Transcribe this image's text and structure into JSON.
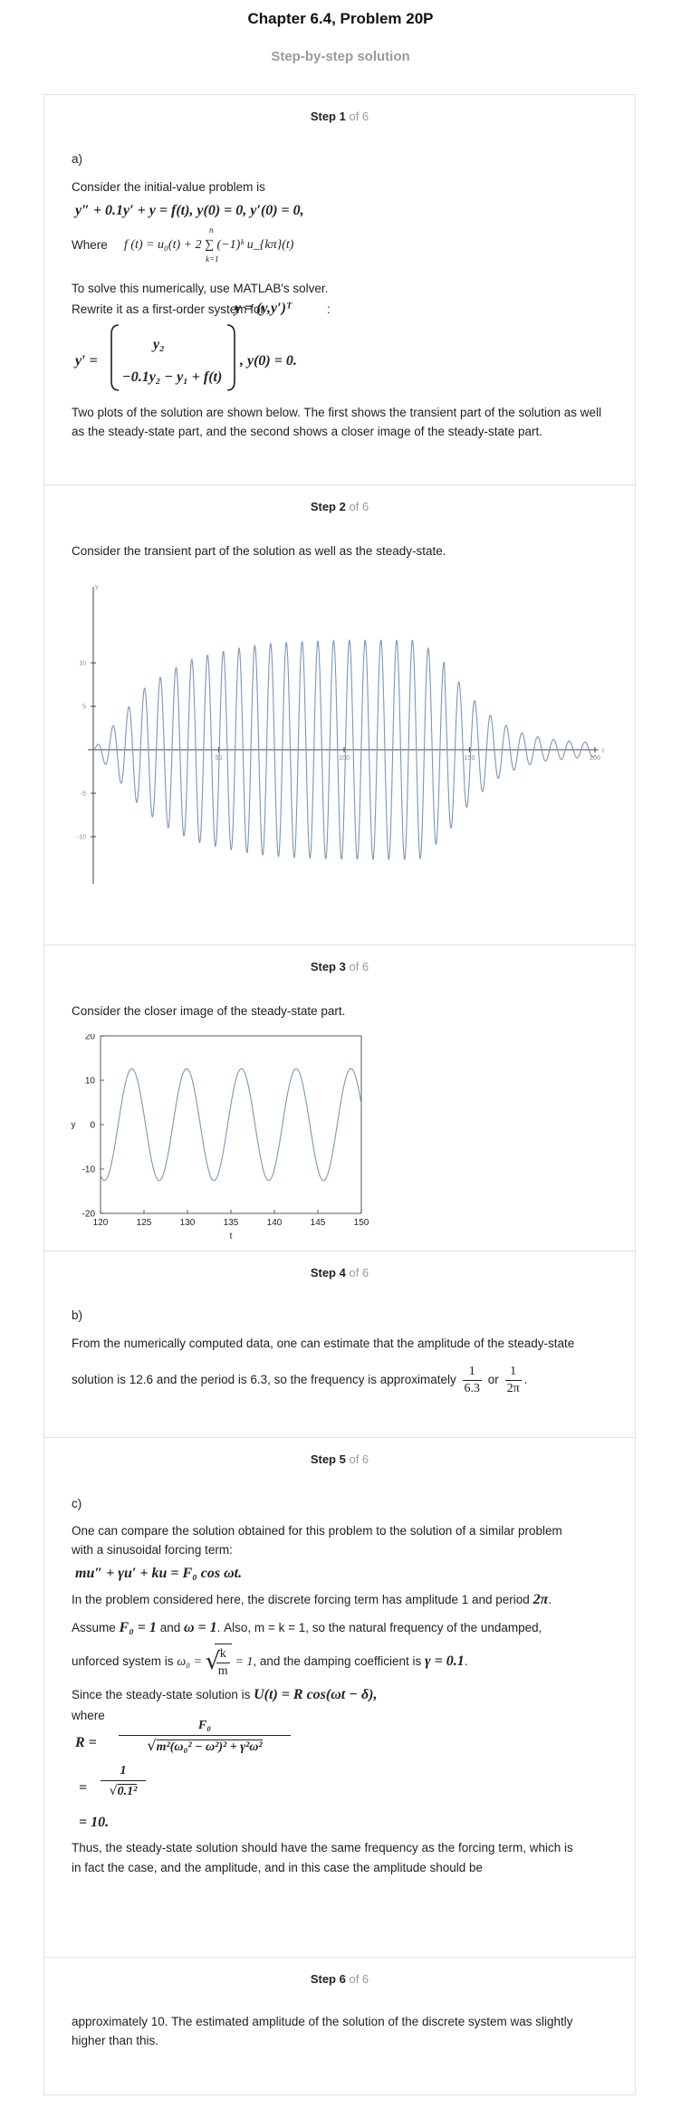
{
  "header": {
    "title": "Chapter 6.4, Problem 20P",
    "subtitle": "Step-by-step solution"
  },
  "steps": [
    {
      "num": "Step 1",
      "of": "of 6",
      "part": "a)",
      "line1": "Consider the initial-value problem is",
      "ivp": "y″ + 0.1y′ + y = f(t),   y(0) = 0,   y′(0) = 0,",
      "where_label": "Where",
      "forcing_fn": "f (t) = u₀(t) + 2 ∑ (−1)ᵏ u_{kπ}(t)",
      "sum_upper": "n",
      "sum_lower": "k=1",
      "line2": "To solve this numerically, use MATLAB's solver.",
      "line3": "Rewrite it as a first-order system for",
      "vecdef": "y = (y,y′)ᵀ",
      "colon": ":",
      "sys_lhs": "y′ =",
      "sys_top": "y₂",
      "sys_bottom": "−0.1y₂ − y₁ + f(t)",
      "sys_rhs": ",   y(0) = 0.",
      "para": "Two plots of the solution are shown below. The first shows the transient part of the solution as well as the steady-state part, and the second shows a closer image of the steady-state part."
    },
    {
      "num": "Step 2",
      "of": "of 6",
      "text": "Consider the transient part of the solution as well as the steady-state."
    },
    {
      "num": "Step 3",
      "of": "of 6",
      "text": "Consider the closer image of the steady-state part."
    },
    {
      "num": "Step 4",
      "of": "of 6",
      "part": "b)",
      "line1": "From the numerically computed data, one can estimate that the amplitude of the steady-state",
      "line2": "solution is 12.6 and the period is 6.3, so the frequency is approximately",
      "f1n": "1",
      "f1d": "6.3",
      "or": "or",
      "f2n": "1",
      "f2d": "2π",
      "dot": "."
    },
    {
      "num": "Step 5",
      "of": "of 6",
      "part": "c)",
      "line1": "One can compare the solution obtained for this problem to the solution of a similar problem",
      "line2": "with a sinusoidal forcing term:",
      "ode": "mu″ + γu′ + ku = F₀ cos ωt.",
      "line3a": "In the problem considered here, the discrete forcing term has amplitude 1 and period",
      "period": "2π",
      "line3b": ".",
      "line4a": "Assume",
      "F0": "F₀ = 1",
      "and": "and",
      "omega": "ω = 1",
      "line4b": ". Also, m = k = 1, so the natural frequency of the undamped,",
      "line5a": "unforced system is",
      "omega0": "ω₀ =",
      "sqrt_n": "k",
      "sqrt_d": "m",
      "eq1": "= 1",
      "line5b": ", and the damping coefficient is",
      "gamma": "γ = 0.1",
      "line5c": ".",
      "line6a": "Since the steady-state solution is",
      "U": "U(t) = R cos(ωt − δ),",
      "where": "where",
      "R_lhs": "R =",
      "R_num": "F₀",
      "R_den": "m²(ω₀² − ω²)² + γ²ω²",
      "eq_a": "=",
      "R2_num": "1",
      "R2_den": "0.1²",
      "eq_b": "= 10.",
      "line7": "Thus, the steady-state solution should have the same frequency as the forcing term, which is",
      "line8": "in fact the case, and the amplitude, and in this case the amplitude should be"
    },
    {
      "num": "Step 6",
      "of": "of 6",
      "line1": "approximately 10. The estimated amplitude of the solution of the discrete system was slightly",
      "line2": "higher than this."
    }
  ],
  "chart_data": [
    {
      "type": "line",
      "title": "",
      "xlabel": "t",
      "ylabel": "y",
      "xlim": [
        0,
        200
      ],
      "ylim": [
        -14,
        14
      ],
      "xticks": [
        50,
        100,
        150,
        200
      ],
      "yticks": [
        -10,
        -5,
        5,
        10
      ],
      "grid": false,
      "color": "#7b96b9",
      "description_of_curve": "",
      "samples": {
        "t": [
          0,
          10,
          20,
          30,
          40,
          50,
          60,
          70,
          80,
          90,
          100,
          110,
          120,
          130,
          140,
          150,
          160,
          170,
          180,
          190,
          200
        ],
        "envelope": [
          0,
          3.5,
          7.0,
          9.0,
          10.5,
          11.2,
          11.8,
          12.2,
          12.4,
          12.5,
          12.6,
          12.6,
          12.6,
          12.6,
          10.0,
          6.2,
          3.5,
          2.0,
          1.3,
          1.0,
          0.8
        ]
      }
    },
    {
      "type": "line",
      "title": "",
      "xlabel": "t",
      "ylabel": "y",
      "xlim": [
        120,
        150
      ],
      "ylim": [
        -20,
        20
      ],
      "xticks": [
        120,
        125,
        130,
        135,
        140,
        145,
        150
      ],
      "yticks": [
        -20,
        -10,
        0,
        10,
        20
      ],
      "grid": false,
      "color": "#7b96b9",
      "amplitude": 12.6,
      "period": 6.3
    }
  ]
}
